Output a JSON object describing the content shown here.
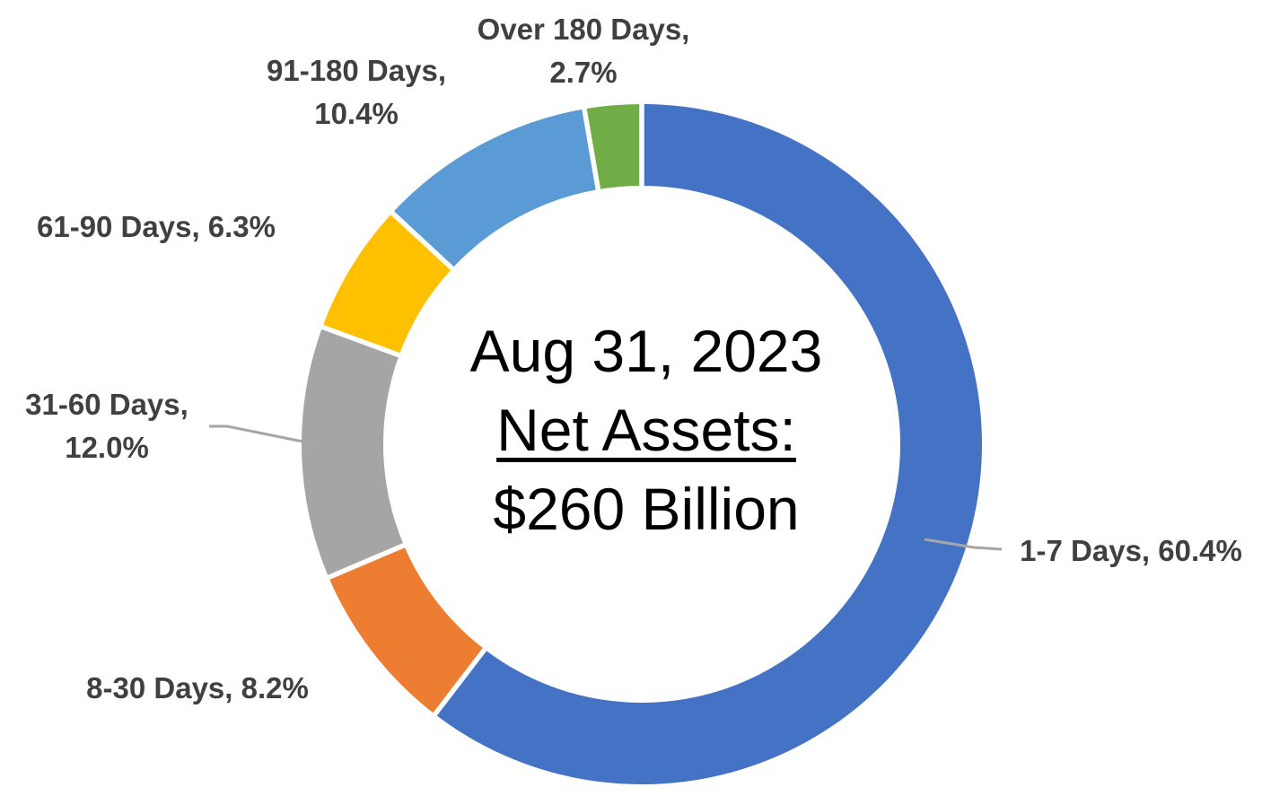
{
  "chart_data": {
    "type": "pie",
    "variant": "donut",
    "hole_ratio": 0.76,
    "start_angle_deg": 0,
    "direction": "clockwise",
    "categories": [
      "1-7 Days",
      "8-30 Days",
      "31-60 Days",
      "61-90 Days",
      "91-180 Days",
      "Over 180 Days"
    ],
    "values": [
      60.4,
      8.2,
      12.0,
      6.3,
      10.4,
      2.7
    ],
    "unit": "%",
    "colors": [
      "#4472C4",
      "#ED7D31",
      "#A5A5A5",
      "#FFC000",
      "#5B9BD5",
      "#70AD47"
    ],
    "slice_labels": [
      {
        "lines": [
          "1-7 Days, 60.4%"
        ]
      },
      {
        "lines": [
          "8-30 Days, 8.2%"
        ]
      },
      {
        "lines": [
          "31-60 Days,",
          "12.0%"
        ]
      },
      {
        "lines": [
          "61-90 Days, 6.3%"
        ]
      },
      {
        "lines": [
          "91-180 Days,",
          "10.4%"
        ]
      },
      {
        "lines": [
          "Over 180 Days,",
          "2.7%"
        ]
      }
    ],
    "center_text": {
      "line1": "Aug 31, 2023",
      "line2": "Net Assets:",
      "line3": "$260 Billion"
    },
    "label_color": "#404040",
    "center_text_color": "#000000",
    "leader_line_color": "#A6A6A6",
    "slice_gap_color": "#FFFFFF",
    "background": "#FFFFFF",
    "legend": "none",
    "title": ""
  }
}
